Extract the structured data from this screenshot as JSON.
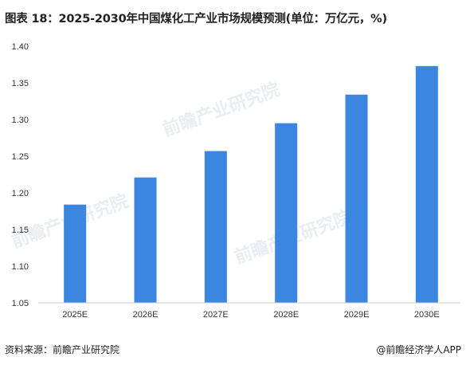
{
  "title": "图表 18：2025-2030年中国煤化工产业市场规模预测(单位：万亿元，%)",
  "footer": {
    "source": "资料来源：前瞻产业研究院",
    "credit": "@前瞻经济学人APP"
  },
  "watermark": "前瞻产业研究院",
  "colors": {
    "bar": "#3a86e0",
    "axis": "#cccccc"
  },
  "chart_data": {
    "type": "bar",
    "categories": [
      "2025E",
      "2026E",
      "2027E",
      "2028E",
      "2029E",
      "2030E"
    ],
    "values": [
      1.184,
      1.221,
      1.257,
      1.295,
      1.334,
      1.373
    ],
    "ylim": [
      1.05,
      1.4
    ],
    "yticks": [
      "1.05",
      "1.10",
      "1.15",
      "1.20",
      "1.25",
      "1.30",
      "1.35",
      "1.40"
    ],
    "xlabel": "",
    "ylabel": "",
    "grid": false
  }
}
